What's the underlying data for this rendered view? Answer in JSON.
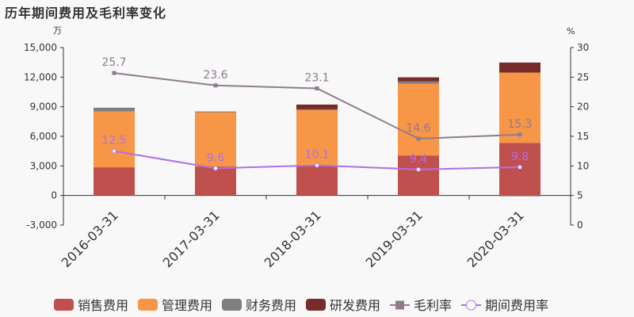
{
  "title": "历年期间费用及毛利率变化",
  "chart_data": {
    "type": "bar",
    "title": "历年期间费用及毛利率变化",
    "categories": [
      "2016-03-31",
      "2017-03-31",
      "2018-03-31",
      "2019-03-31",
      "2020-03-31"
    ],
    "left_axis": {
      "unit": "万",
      "ylim": [
        -3000,
        15000
      ],
      "ticks": [
        "-3,000",
        "0",
        "3,000",
        "6,000",
        "9,000",
        "12,000",
        "15,000"
      ],
      "tick_values": [
        -3000,
        0,
        3000,
        6000,
        9000,
        12000,
        15000
      ]
    },
    "right_axis": {
      "unit": "%",
      "ylim": [
        0,
        30
      ],
      "ticks": [
        "0",
        "5",
        "10",
        "15",
        "20",
        "25",
        "30"
      ],
      "tick_values": [
        0,
        5,
        10,
        15,
        20,
        25,
        30
      ]
    },
    "series": [
      {
        "name": "销售费用",
        "type": "bar",
        "color": "#c0504d",
        "values": [
          2860,
          2940,
          3070,
          4060,
          5340
        ]
      },
      {
        "name": "管理费用",
        "type": "bar",
        "color": "#f79646",
        "values": [
          5670,
          5530,
          5640,
          7270,
          7120
        ]
      },
      {
        "name": "财务费用",
        "type": "bar",
        "color": "#7f7f7f",
        "values": [
          370,
          50,
          30,
          240,
          -80
        ]
      },
      {
        "name": "研发费用",
        "type": "bar",
        "color": "#772c2a",
        "values": [
          0,
          0,
          480,
          410,
          1020
        ]
      },
      {
        "name": "毛利率",
        "type": "line",
        "axis": "right",
        "color": "#8e7b8f",
        "values": [
          25.7,
          23.6,
          23.1,
          14.6,
          15.3
        ],
        "labels": [
          "25.7",
          "23.6",
          "23.1",
          "14.6",
          "15.3"
        ]
      },
      {
        "name": "期间费用率",
        "type": "line",
        "axis": "right",
        "color": "#b36ee6",
        "values": [
          12.5,
          9.6,
          10.1,
          9.4,
          9.8
        ],
        "labels": [
          "12.5",
          "9.6",
          "10.1",
          "9.4",
          "9.8"
        ]
      }
    ],
    "legend": "bottom",
    "grid": false
  }
}
